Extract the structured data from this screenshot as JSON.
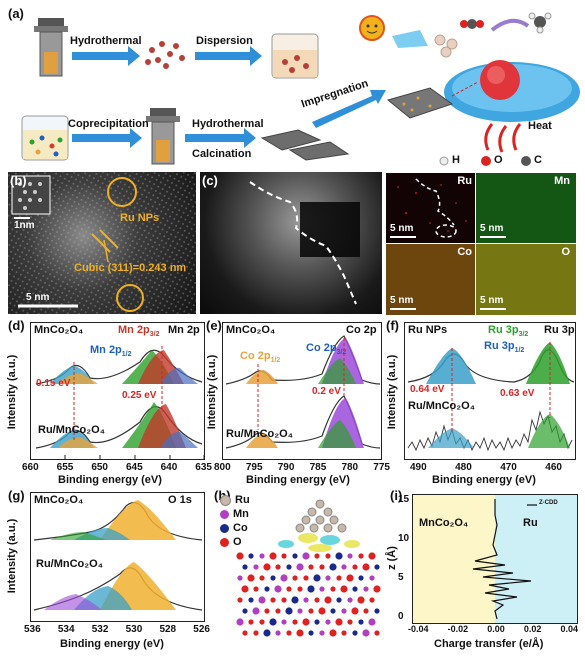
{
  "panel_a": {
    "label": "(a)",
    "steps": {
      "hydrothermal": "Hydrothermal",
      "dispersion": "Dispersion",
      "coprecipitation": "Coprecipitation",
      "hydrothermal_calcination_1": "Hydrothermal",
      "hydrothermal_calcination_2": "Calcination",
      "impregnation": "Impregnation",
      "heat": "Heat"
    },
    "legend": {
      "h": "H",
      "o": "O",
      "c": "C"
    }
  },
  "panel_b": {
    "label": "(b)",
    "scale_small": "1nm",
    "ru_nps": "Ru NPs",
    "cubic": "Cubic (311)=0.243 nm",
    "scale_bar": "5 nm"
  },
  "panel_c": {
    "label": "(c)",
    "maps": {
      "ru": "Ru",
      "mn": "Mn",
      "co": "Co",
      "o": "O",
      "scale": "5 nm"
    }
  },
  "panel_d": {
    "label": "(d)",
    "sample_top": "MnCo₂O₄",
    "mn2p32": "Mn 2p",
    "mn2p32_sub": "3/2",
    "mn2p": "Mn 2p",
    "mn2p12": "Mn 2p",
    "mn2p12_sub": "1/2",
    "shift1": "0.15 eV",
    "shift2": "0.25 eV",
    "sample_bottom": "Ru/MnCo₂O₄",
    "ylabel": "Intensity (a.u.)",
    "xlabel": "Binding energy (eV)",
    "xticks": [
      "660",
      "655",
      "650",
      "645",
      "640",
      "635"
    ]
  },
  "panel_e": {
    "label": "(e)",
    "sample_top": "MnCo₂O₄",
    "co2p32": "Co 2p",
    "co2p32_sub": "3/2",
    "co2p": "Co 2p",
    "co2p12": "Co 2p",
    "co2p12_sub": "1/2",
    "shift": "0.2 eV",
    "sample_bottom": "Ru/MnCo₂O₄",
    "ylabel": "Intensity (a.u.)",
    "xlabel": "Binding energy (eV)",
    "xticks": [
      "800",
      "795",
      "790",
      "785",
      "780",
      "775"
    ]
  },
  "panel_f": {
    "label": "(f)",
    "ru_nps": "Ru NPs",
    "ru3p32": "Ru 3p",
    "ru3p32_sub": "3/2",
    "ru3p": "Ru 3p",
    "ru3p12": "Ru 3p",
    "ru3p12_sub": "1/2",
    "shift1": "0.64 eV",
    "shift2": "0.63 eV",
    "sample_bottom": "Ru/MnCo₂O₄",
    "ylabel": "Intensity (a.u.)",
    "xlabel": "Binding energy (eV)",
    "xticks": [
      "490",
      "480",
      "470",
      "460"
    ]
  },
  "panel_g": {
    "label": "(g)",
    "sample_top": "MnCo₂O₄",
    "o1s": "O 1s",
    "sample_bottom": "Ru/MnCo₂O₄",
    "ylabel": "Intensity (a.u.)",
    "xlabel": "Binding energy (eV)",
    "xticks": [
      "536",
      "534",
      "532",
      "530",
      "528",
      "526"
    ]
  },
  "panel_h": {
    "label": "(h)",
    "legend": [
      "Ru",
      "Mn",
      "Co",
      "O"
    ]
  },
  "panel_i": {
    "label": "(i)",
    "left_region": "MnCo₂O₄",
    "right_region": "Ru",
    "legend": "Z-CDD",
    "ylabel": "z (Å)",
    "xlabel": "Charge transfer (e/Å)",
    "xticks": [
      "-0.04",
      "-0.02",
      "0.00",
      "0.02",
      "0.04"
    ],
    "yticks": [
      "0",
      "5",
      "10",
      "15"
    ]
  },
  "colors": {
    "arrow": "#2f8fd8",
    "orange": "#e8a23a",
    "green": "#2ca02c",
    "red": "#d83a2a",
    "blue": "#1f5fbf",
    "purple": "#9b4bd8",
    "yellow_region": "#fdf6c8",
    "cyan_region": "#cdeff6"
  }
}
